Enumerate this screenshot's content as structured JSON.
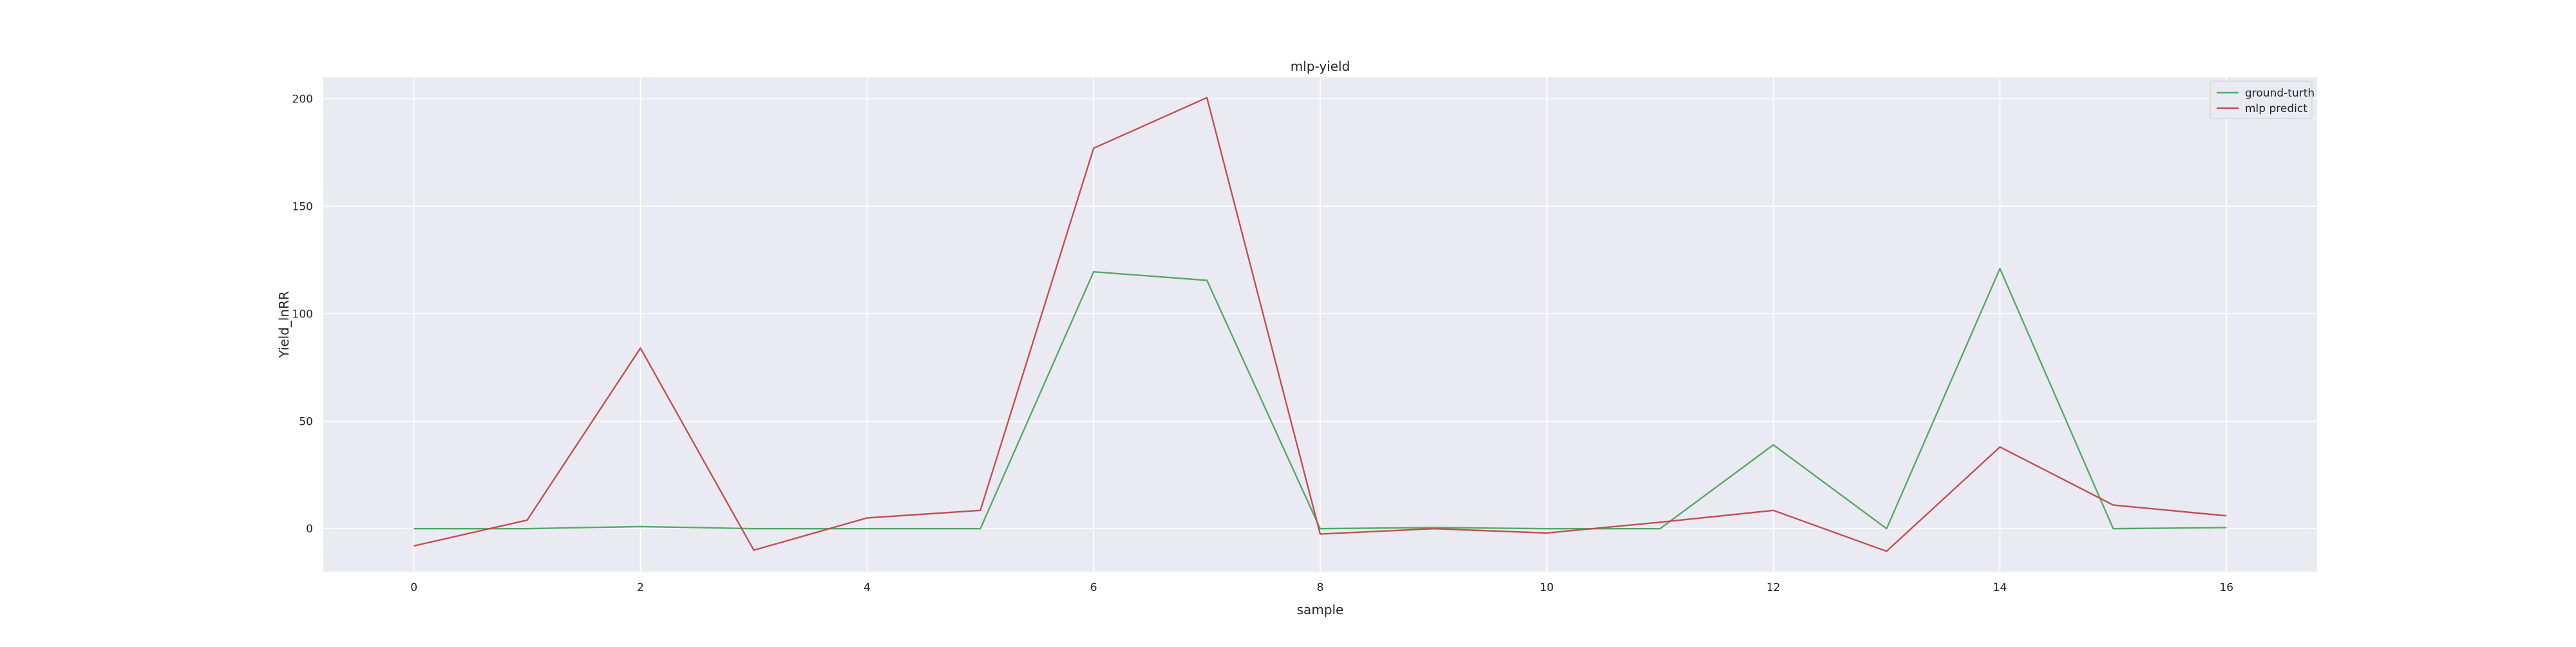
{
  "chart_data": {
    "type": "line",
    "title": "mlp-yield",
    "xlabel": "sample",
    "ylabel": "Yield_lnRR",
    "xlim": [
      -0.8,
      16.8
    ],
    "ylim": [
      -20,
      210
    ],
    "xticks": [
      0,
      2,
      4,
      6,
      8,
      10,
      12,
      14,
      16
    ],
    "yticks": [
      0,
      50,
      100,
      150,
      200
    ],
    "grid": true,
    "legend_position": "top-right",
    "x": [
      0,
      1,
      2,
      3,
      4,
      5,
      6,
      7,
      8,
      9,
      10,
      11,
      12,
      13,
      14,
      15,
      16
    ],
    "series": [
      {
        "name": "ground-turth",
        "color": "#55a868",
        "values": [
          0,
          0,
          1,
          0,
          0,
          0,
          119.5,
          115.5,
          0,
          0.5,
          0,
          0,
          39,
          0,
          121,
          0,
          0.5
        ]
      },
      {
        "name": "mlp predict",
        "color": "#c44e52",
        "values": [
          -8,
          4,
          84,
          -10,
          5,
          8.5,
          177,
          200.5,
          -2.5,
          0,
          -2,
          3,
          8.5,
          -10.5,
          38,
          11,
          6
        ]
      }
    ],
    "background_color": "#eaeaf2",
    "grid_color": "#ffffff"
  }
}
